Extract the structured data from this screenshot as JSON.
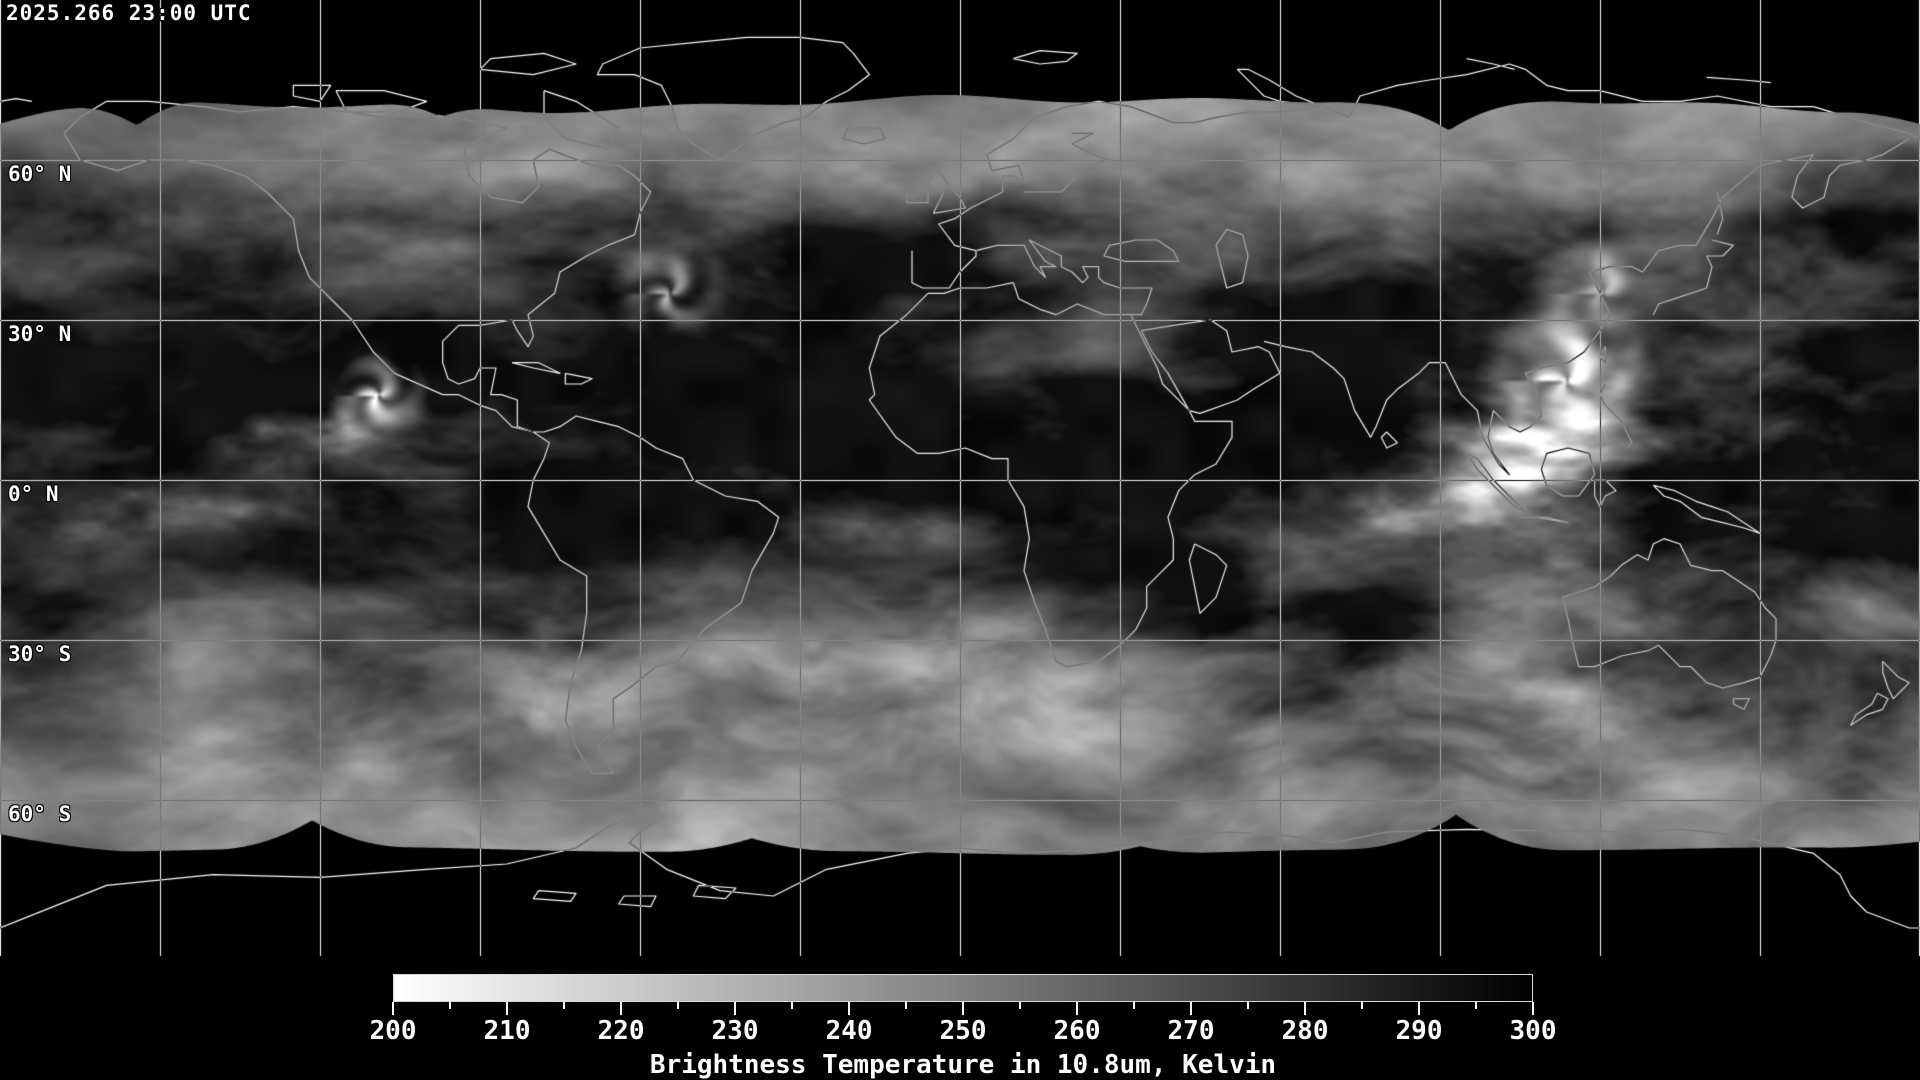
{
  "header": {
    "timestamp": "2025.266 23:00 UTC"
  },
  "map": {
    "latitude_labels": [
      {
        "text": "60° N",
        "lat": 60
      },
      {
        "text": "30° N",
        "lat": 30
      },
      {
        "text": "0° N",
        "lat": 0
      },
      {
        "text": "30° S",
        "lat": -30
      },
      {
        "text": "60° S",
        "lat": -60
      }
    ],
    "grid": {
      "lon_step_deg": 30,
      "lat_line_degs": [
        60,
        30,
        0,
        -30,
        -60
      ]
    },
    "colors": {
      "background": "#000000",
      "gridline": "#ffffff",
      "coastline": "#ffffff",
      "label_text": "#ffffff"
    }
  },
  "colorbar": {
    "min": 200,
    "max": 300,
    "major_step": 10,
    "minor_step": 5,
    "tick_labels": [
      "200",
      "210",
      "220",
      "230",
      "240",
      "250",
      "260",
      "270",
      "280",
      "290",
      "300"
    ],
    "caption": "Brightness Temperature in 10.8um, Kelvin",
    "start_color": "#ffffff",
    "end_color": "#000000",
    "text_color": "#ffffff"
  }
}
